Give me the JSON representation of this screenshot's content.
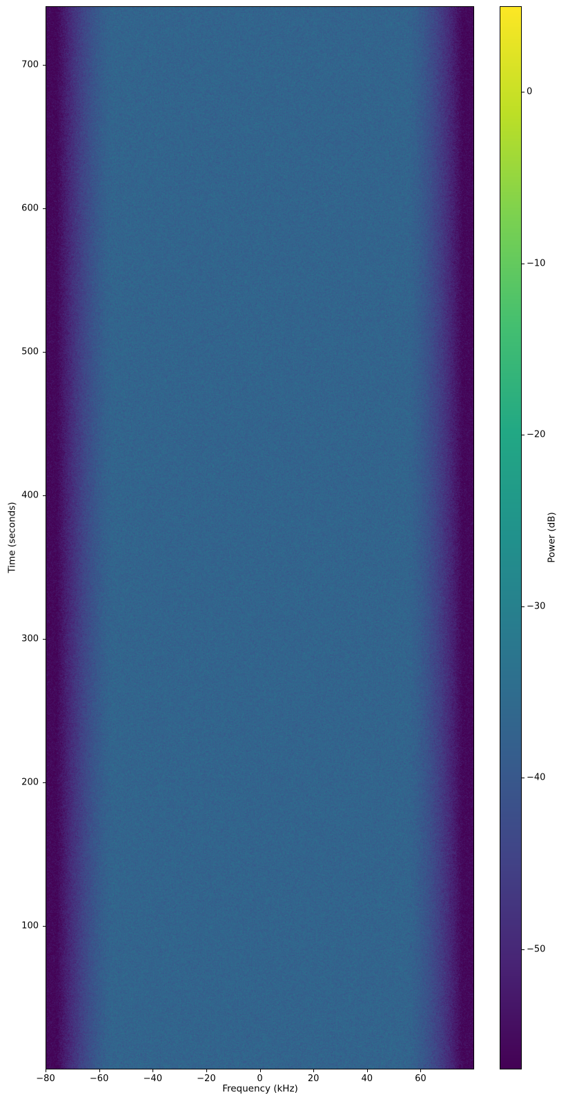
{
  "figure": {
    "background": "#ffffff",
    "text_color": "#000000"
  },
  "chart_data": {
    "type": "heatmap",
    "title": "",
    "xlabel": "Frequency (kHz)",
    "ylabel": "Time (seconds)",
    "colorbar_label": "Power (dB)",
    "colormap": "viridis",
    "grid": false,
    "legend": "none",
    "x_range_khz": [
      -80,
      80
    ],
    "y_range_seconds": [
      0,
      741
    ],
    "color_range_db": [
      -57,
      5
    ],
    "x_tick_values": [
      -80,
      -60,
      -40,
      -20,
      0,
      20,
      40,
      60
    ],
    "x_tick_labels": [
      "−80",
      "−60",
      "−40",
      "−20",
      "0",
      "20",
      "40",
      "60"
    ],
    "y_tick_values": [
      100,
      200,
      300,
      400,
      500,
      600,
      700
    ],
    "y_tick_labels": [
      "100",
      "200",
      "300",
      "400",
      "500",
      "600",
      "700"
    ],
    "colorbar_tick_values": [
      0,
      -10,
      -20,
      -30,
      -40,
      -50
    ],
    "colorbar_tick_labels": [
      "0",
      "−10",
      "−20",
      "−30",
      "−40",
      "−50"
    ],
    "viridis_stops": [
      [
        0.0,
        "#440154"
      ],
      [
        0.1,
        "#482475"
      ],
      [
        0.2,
        "#414487"
      ],
      [
        0.3,
        "#355f8d"
      ],
      [
        0.4,
        "#2a788e"
      ],
      [
        0.5,
        "#21918c"
      ],
      [
        0.6,
        "#22a884"
      ],
      [
        0.7,
        "#44bf70"
      ],
      [
        0.8,
        "#7ad151"
      ],
      [
        0.9,
        "#bddf26"
      ],
      [
        1.0,
        "#fde725"
      ]
    ],
    "signal": {
      "description": "Noise-like wideband signal, constant over time, occupying roughly ±75 kHz with symmetric band-edge roll-off into the noise floor",
      "passband_level_db": -37,
      "passband_half_width_khz": 55,
      "rolloff_end_khz": 76,
      "rolloff_exponent": 1.5,
      "stopband_floor_db": -56,
      "noise_sigma_db": 1.7
    }
  }
}
